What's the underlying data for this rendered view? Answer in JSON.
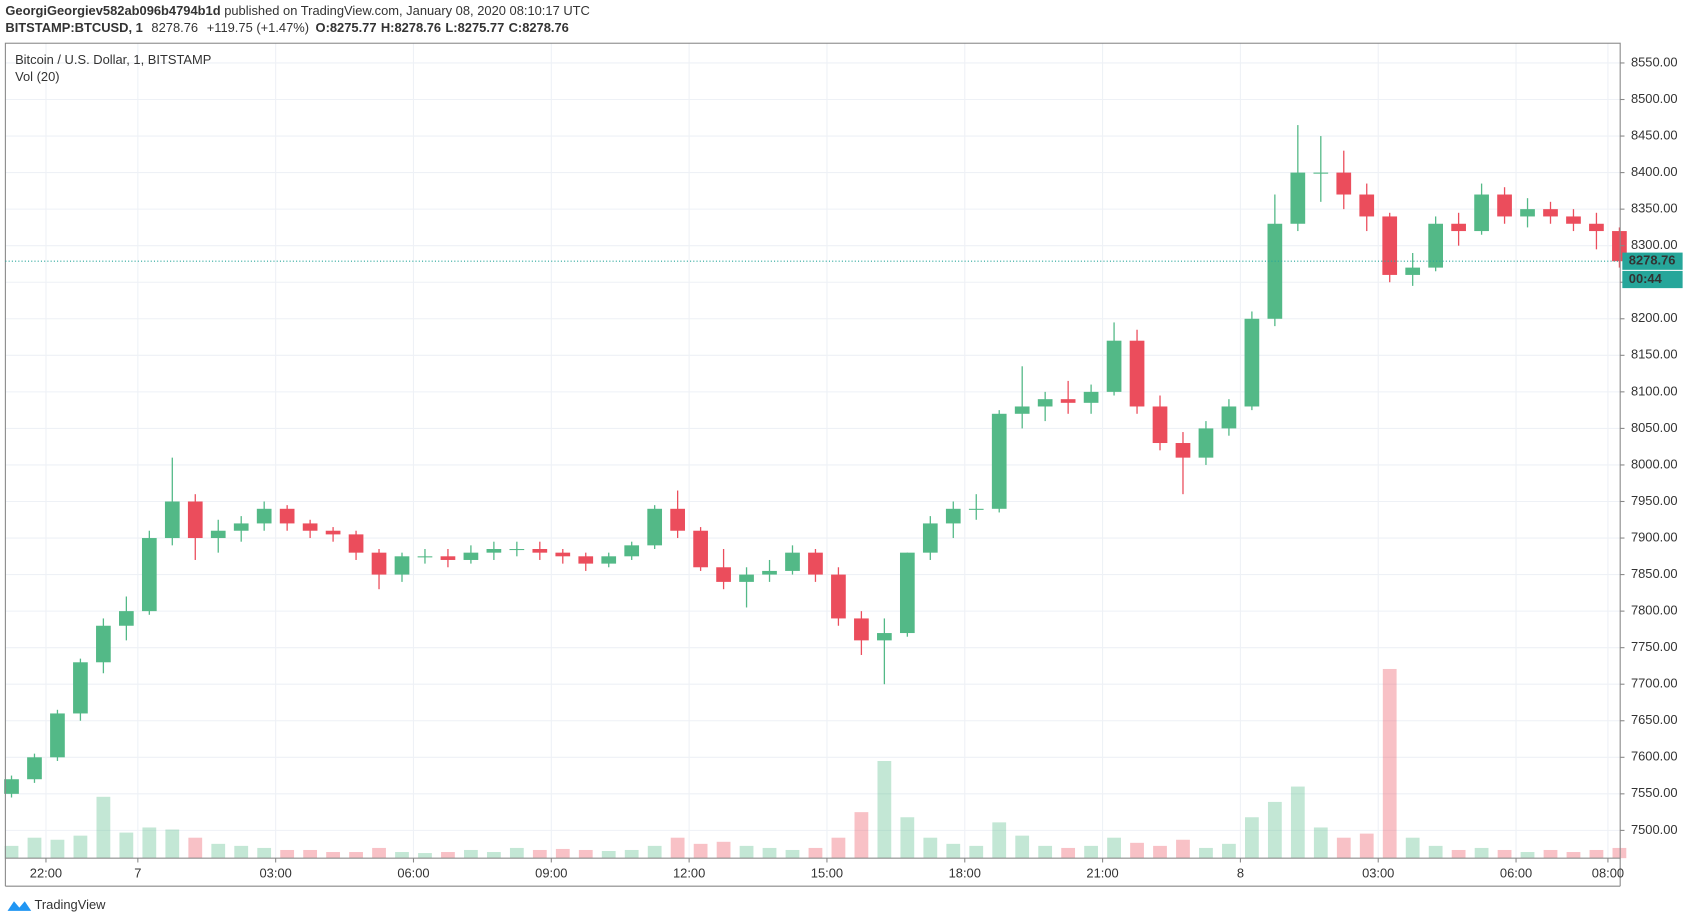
{
  "header": {
    "author": "GeorgiGeorgiev582ab096b4794b1d",
    "published": "published on TradingView.com, January 08, 2020 08:10:17 UTC",
    "symbol": "BITSTAMP:BTCUSD, 1",
    "price": "8278.76",
    "change": "+119.75 (+1.47%)",
    "open": "O:8275.77",
    "high": "H:8278.76",
    "low": "L:8275.77",
    "close": "C:8278.76"
  },
  "footer": {
    "brand": "TradingView"
  },
  "chart_data": {
    "type": "candlestick",
    "title": "Bitcoin / U.S. Dollar, 1, BITSTAMP",
    "volume_label": "Vol (20)",
    "up_color": "#53b987",
    "down_color": "#eb4d5c",
    "grid": true,
    "xlim": [
      -53,
      2056
    ],
    "xticks": [
      {
        "value": 0,
        "label": "22:00"
      },
      {
        "value": 120,
        "label": "7"
      },
      {
        "value": 300,
        "label": "03:00"
      },
      {
        "value": 480,
        "label": "06:00"
      },
      {
        "value": 660,
        "label": "09:00"
      },
      {
        "value": 840,
        "label": "12:00"
      },
      {
        "value": 1020,
        "label": "15:00"
      },
      {
        "value": 1200,
        "label": "18:00"
      },
      {
        "value": 1380,
        "label": "21:00"
      },
      {
        "value": 1560,
        "label": "8"
      },
      {
        "value": 1740,
        "label": "03:00"
      },
      {
        "value": 1920,
        "label": "06:00"
      },
      {
        "value": 2040,
        "label": "08:00"
      }
    ],
    "ylim": [
      7462,
      8577
    ],
    "yticks": [
      {
        "value": 7500,
        "label": "7500.00"
      },
      {
        "value": 7550,
        "label": "7550.00"
      },
      {
        "value": 7600,
        "label": "7600.00"
      },
      {
        "value": 7650,
        "label": "7650.00"
      },
      {
        "value": 7700,
        "label": "7700.00"
      },
      {
        "value": 7750,
        "label": "7750.00"
      },
      {
        "value": 7800,
        "label": "7800.00"
      },
      {
        "value": 7850,
        "label": "7850.00"
      },
      {
        "value": 7900,
        "label": "7900.00"
      },
      {
        "value": 7950,
        "label": "7950.00"
      },
      {
        "value": 8000,
        "label": "8000.00"
      },
      {
        "value": 8050,
        "label": "8050.00"
      },
      {
        "value": 8100,
        "label": "8100.00"
      },
      {
        "value": 8150,
        "label": "8150.00"
      },
      {
        "value": 8200,
        "label": "8200.00"
      },
      {
        "value": 8250,
        "label": "8250.00"
      },
      {
        "value": 8300,
        "label": "8300.00"
      },
      {
        "value": 8350,
        "label": "8350.00"
      },
      {
        "value": 8400,
        "label": "8400.00"
      },
      {
        "value": 8450,
        "label": "8450.00"
      },
      {
        "value": 8500,
        "label": "8500.00"
      },
      {
        "value": 8550,
        "label": "8550.00"
      }
    ],
    "last_price": 8278.76,
    "countdown": "00:44",
    "last_color": "#26a69a",
    "vlim": [
      0,
      200
    ],
    "x": [
      -60,
      -30,
      0,
      30,
      60,
      90,
      120,
      150,
      180,
      210,
      240,
      270,
      300,
      330,
      360,
      390,
      420,
      450,
      480,
      510,
      540,
      570,
      600,
      630,
      660,
      690,
      720,
      750,
      780,
      810,
      840,
      870,
      900,
      930,
      960,
      990,
      1020,
      1050,
      1080,
      1110,
      1140,
      1170,
      1200,
      1230,
      1260,
      1290,
      1320,
      1350,
      1380,
      1410,
      1440,
      1470,
      1500,
      1530,
      1560,
      1590,
      1620,
      1650,
      1680,
      1710,
      1740,
      1770,
      1800,
      1830,
      1860,
      1890,
      1920,
      1950,
      1980,
      2010,
      2040
    ],
    "ohlc": [
      [
        7550,
        7575,
        7545,
        7570
      ],
      [
        7570,
        7605,
        7565,
        7600
      ],
      [
        7600,
        7665,
        7595,
        7660
      ],
      [
        7660,
        7735,
        7650,
        7730
      ],
      [
        7730,
        7790,
        7715,
        7780
      ],
      [
        7780,
        7820,
        7760,
        7800
      ],
      [
        7800,
        7910,
        7795,
        7900
      ],
      [
        7900,
        8010,
        7890,
        7950
      ],
      [
        7950,
        7960,
        7870,
        7900
      ],
      [
        7900,
        7925,
        7880,
        7910
      ],
      [
        7910,
        7930,
        7895,
        7920
      ],
      [
        7920,
        7950,
        7910,
        7940
      ],
      [
        7940,
        7945,
        7910,
        7920
      ],
      [
        7920,
        7925,
        7900,
        7910
      ],
      [
        7910,
        7915,
        7895,
        7905
      ],
      [
        7905,
        7910,
        7870,
        7880
      ],
      [
        7880,
        7885,
        7830,
        7850
      ],
      [
        7850,
        7880,
        7840,
        7875
      ],
      [
        7875,
        7885,
        7865,
        7875
      ],
      [
        7875,
        7885,
        7860,
        7870
      ],
      [
        7870,
        7890,
        7865,
        7880
      ],
      [
        7880,
        7895,
        7870,
        7885
      ],
      [
        7885,
        7895,
        7875,
        7885
      ],
      [
        7885,
        7895,
        7870,
        7880
      ],
      [
        7880,
        7885,
        7865,
        7875
      ],
      [
        7875,
        7880,
        7855,
        7865
      ],
      [
        7865,
        7880,
        7860,
        7875
      ],
      [
        7875,
        7895,
        7870,
        7890
      ],
      [
        7890,
        7945,
        7885,
        7940
      ],
      [
        7940,
        7965,
        7900,
        7910
      ],
      [
        7910,
        7915,
        7855,
        7860
      ],
      [
        7860,
        7885,
        7830,
        7840
      ],
      [
        7840,
        7860,
        7805,
        7850
      ],
      [
        7850,
        7870,
        7840,
        7855
      ],
      [
        7855,
        7890,
        7850,
        7880
      ],
      [
        7880,
        7885,
        7840,
        7850
      ],
      [
        7850,
        7860,
        7780,
        7790
      ],
      [
        7790,
        7800,
        7740,
        7760
      ],
      [
        7760,
        7790,
        7700,
        7770
      ],
      [
        7770,
        7880,
        7765,
        7880
      ],
      [
        7880,
        7930,
        7870,
        7920
      ],
      [
        7920,
        7950,
        7900,
        7940
      ],
      [
        7940,
        7960,
        7925,
        7940
      ],
      [
        7940,
        8075,
        7935,
        8070
      ],
      [
        8070,
        8135,
        8050,
        8080
      ],
      [
        8080,
        8100,
        8060,
        8090
      ],
      [
        8090,
        8115,
        8070,
        8085
      ],
      [
        8085,
        8110,
        8070,
        8100
      ],
      [
        8100,
        8195,
        8095,
        8170
      ],
      [
        8170,
        8185,
        8070,
        8080
      ],
      [
        8080,
        8095,
        8020,
        8030
      ],
      [
        8030,
        8045,
        7960,
        8010
      ],
      [
        8010,
        8060,
        8000,
        8050
      ],
      [
        8050,
        8090,
        8040,
        8080
      ],
      [
        8080,
        8210,
        8075,
        8200
      ],
      [
        8200,
        8370,
        8190,
        8330
      ],
      [
        8330,
        8465,
        8320,
        8400
      ],
      [
        8400,
        8450,
        8360,
        8400
      ],
      [
        8400,
        8430,
        8350,
        8370
      ],
      [
        8370,
        8385,
        8320,
        8340
      ],
      [
        8340,
        8345,
        8250,
        8260
      ],
      [
        8260,
        8290,
        8245,
        8270
      ],
      [
        8270,
        8340,
        8265,
        8330
      ],
      [
        8330,
        8345,
        8300,
        8320
      ],
      [
        8320,
        8385,
        8315,
        8370
      ],
      [
        8370,
        8380,
        8330,
        8340
      ],
      [
        8340,
        8365,
        8325,
        8350
      ],
      [
        8350,
        8360,
        8330,
        8340
      ],
      [
        8340,
        8350,
        8320,
        8330
      ],
      [
        8330,
        8345,
        8295,
        8320
      ],
      [
        8320,
        8325,
        8270,
        8278.76
      ]
    ],
    "volume": [
      12,
      20,
      18,
      22,
      60,
      25,
      30,
      28,
      20,
      14,
      12,
      10,
      8,
      8,
      6,
      6,
      10,
      6,
      5,
      6,
      8,
      6,
      10,
      8,
      9,
      8,
      7,
      8,
      12,
      20,
      14,
      16,
      12,
      10,
      8,
      10,
      20,
      45,
      95,
      40,
      20,
      14,
      12,
      35,
      22,
      12,
      10,
      12,
      20,
      15,
      12,
      18,
      10,
      14,
      40,
      55,
      70,
      30,
      20,
      24,
      185,
      20,
      12,
      8,
      10,
      8,
      6,
      8,
      6,
      8,
      10
    ]
  }
}
